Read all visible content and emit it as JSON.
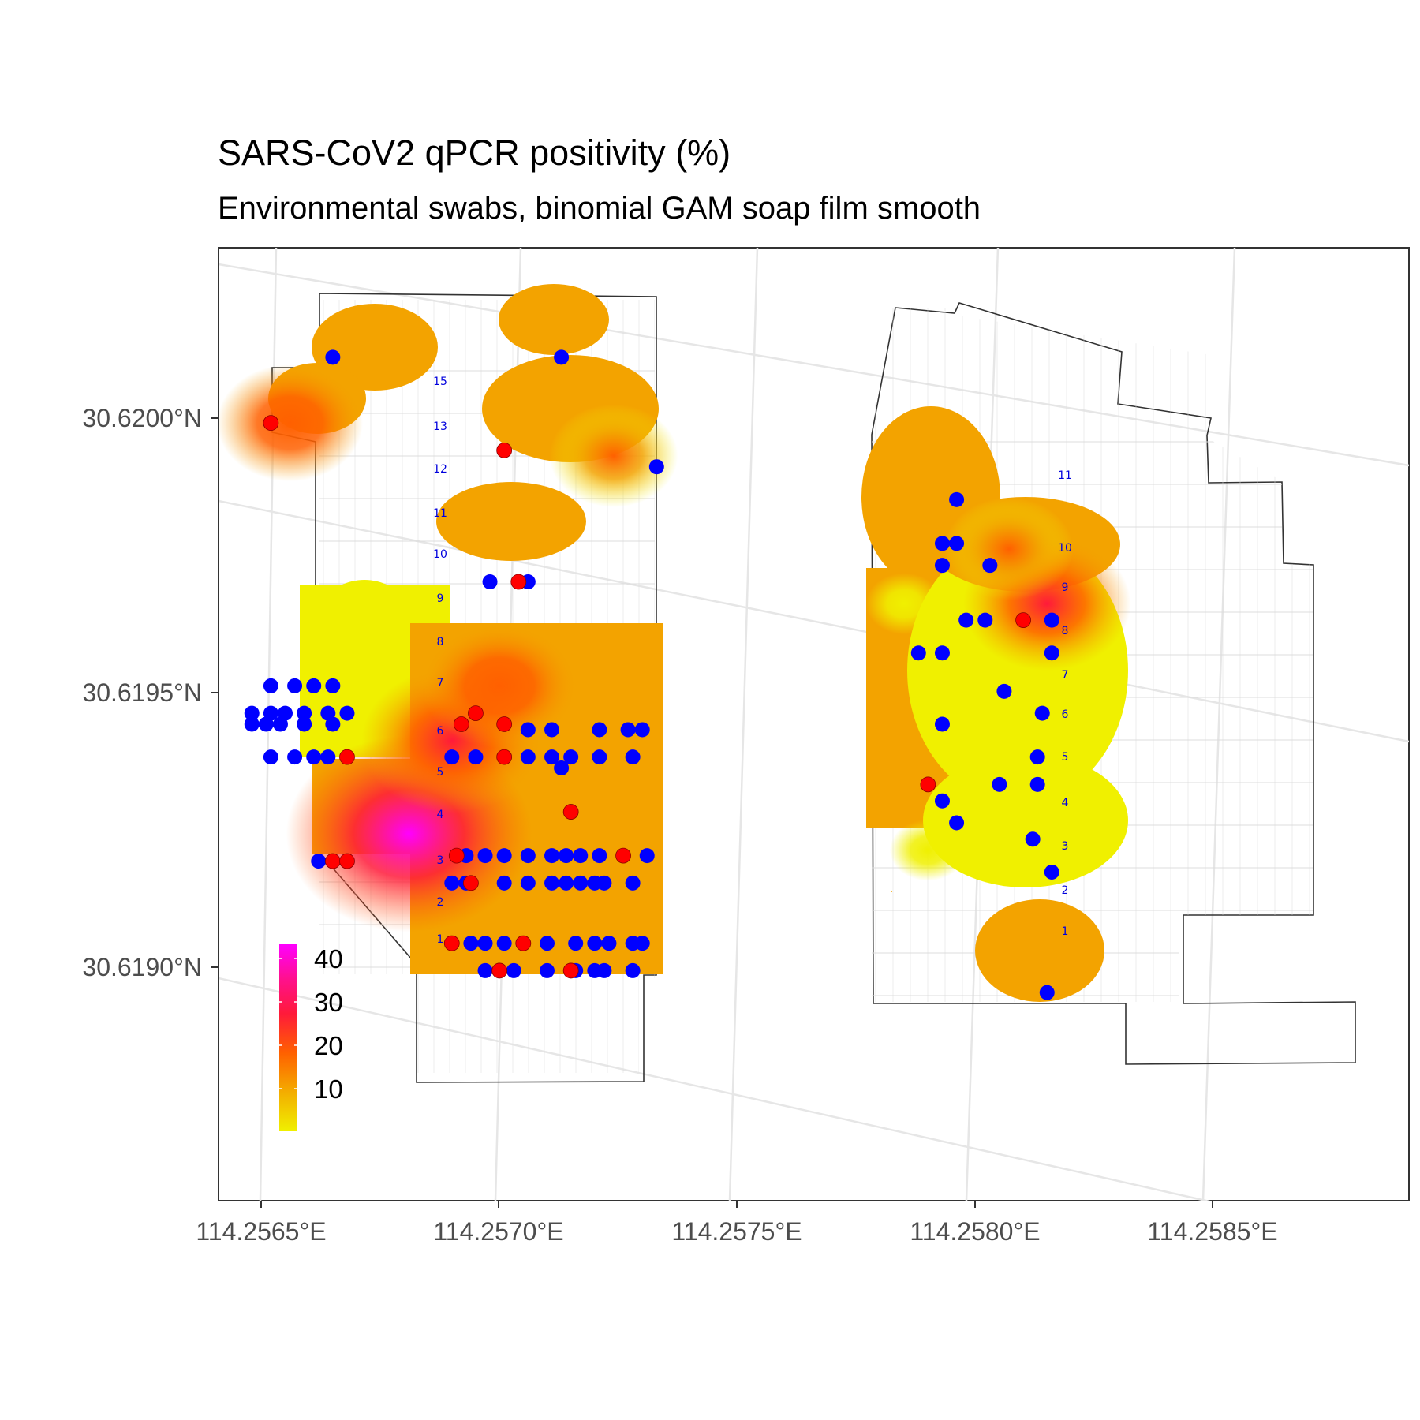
{
  "title": "SARS-CoV2 qPCR positivity (%)",
  "subtitle": "Environmental swabs, binomial GAM soap film smooth",
  "colors": {
    "negative_point": "#0000ff",
    "positive_point": "#ff0000",
    "scale_low": "#f0f000",
    "scale_mid1": "#f3a300",
    "scale_mid2": "#ff6000",
    "scale_mid3": "#ff1a3a",
    "scale_high": "#ff00ff",
    "graticule": "#e6e6e6",
    "boundary": "#333333",
    "row_label": "#0000dd"
  },
  "axes": {
    "x_ticks": [
      "114.2565°E",
      "114.2570°E",
      "114.2575°E",
      "114.2580°E",
      "114.2585°E"
    ],
    "y_ticks": [
      "30.6200°N",
      "30.6195°N",
      "30.6190°N"
    ]
  },
  "legend": {
    "labels": [
      "40",
      "30",
      "20",
      "10"
    ]
  },
  "chart_data": {
    "type": "scatter",
    "title": "SARS-CoV2 qPCR positivity (%)",
    "subtitle": "Environmental swabs, binomial GAM soap film smooth",
    "xlim": [
      114.25641,
      114.25891
    ],
    "ylim": [
      30.61866,
      30.6204
    ],
    "colorbar_range": [
      0,
      43
    ],
    "colorbar_ticks": [
      10,
      20,
      30,
      40
    ],
    "row_labels_left": [
      "15",
      "13",
      "12",
      "11",
      "10",
      "9",
      "8",
      "7",
      "6",
      "5",
      "4",
      "3",
      "2",
      "1"
    ],
    "row_labels_right": [
      "11",
      "10",
      "9",
      "8",
      "7",
      "6",
      "5",
      "4",
      "3",
      "2",
      "1"
    ],
    "hotspots": [
      {
        "lon": 114.25681,
        "lat": 30.61933,
        "value": 43
      },
      {
        "lon": 114.2569,
        "lat": 30.6195,
        "value": 28
      },
      {
        "lon": 114.257,
        "lat": 30.6196,
        "value": 22
      },
      {
        "lon": 114.25656,
        "lat": 30.62008,
        "value": 20
      },
      {
        "lon": 114.25724,
        "lat": 30.62002,
        "value": 16
      },
      {
        "lon": 114.25815,
        "lat": 30.61975,
        "value": 25
      },
      {
        "lon": 114.25807,
        "lat": 30.61985,
        "value": 16
      },
      {
        "lon": 114.2579,
        "lat": 30.6193,
        "value": 4
      },
      {
        "lon": 114.25785,
        "lat": 30.61975,
        "value": 4
      }
    ],
    "negative_points": [
      [
        114.25665,
        30.6202
      ],
      [
        114.25713,
        30.6202
      ],
      [
        114.25733,
        30.62
      ],
      [
        114.25698,
        30.61979
      ],
      [
        114.25706,
        30.61979
      ],
      [
        114.25652,
        30.6196
      ],
      [
        114.25657,
        30.6196
      ],
      [
        114.25661,
        30.6196
      ],
      [
        114.25665,
        30.6196
      ],
      [
        114.25648,
        30.61955
      ],
      [
        114.25652,
        30.61955
      ],
      [
        114.25655,
        30.61955
      ],
      [
        114.25659,
        30.61955
      ],
      [
        114.25664,
        30.61955
      ],
      [
        114.25668,
        30.61955
      ],
      [
        114.25648,
        30.61953
      ],
      [
        114.25651,
        30.61953
      ],
      [
        114.25654,
        30.61953
      ],
      [
        114.25659,
        30.61953
      ],
      [
        114.25665,
        30.61953
      ],
      [
        114.25652,
        30.61947
      ],
      [
        114.25657,
        30.61947
      ],
      [
        114.25661,
        30.61947
      ],
      [
        114.25664,
        30.61947
      ],
      [
        114.25706,
        30.61952
      ],
      [
        114.25711,
        30.61952
      ],
      [
        114.25721,
        30.61952
      ],
      [
        114.25727,
        30.61952
      ],
      [
        114.2573,
        30.61952
      ],
      [
        114.2569,
        30.61947
      ],
      [
        114.25695,
        30.61947
      ],
      [
        114.25706,
        30.61947
      ],
      [
        114.25711,
        30.61947
      ],
      [
        114.25715,
        30.61947
      ],
      [
        114.25721,
        30.61947
      ],
      [
        114.25728,
        30.61947
      ],
      [
        114.25713,
        30.61945
      ],
      [
        114.25662,
        30.61928
      ],
      [
        114.25693,
        30.61929
      ],
      [
        114.25697,
        30.61929
      ],
      [
        114.25701,
        30.61929
      ],
      [
        114.25706,
        30.61929
      ],
      [
        114.25711,
        30.61929
      ],
      [
        114.25714,
        30.61929
      ],
      [
        114.25717,
        30.61929
      ],
      [
        114.25721,
        30.61929
      ],
      [
        114.25731,
        30.61929
      ],
      [
        114.2569,
        30.61924
      ],
      [
        114.25693,
        30.61924
      ],
      [
        114.25701,
        30.61924
      ],
      [
        114.25706,
        30.61924
      ],
      [
        114.25711,
        30.61924
      ],
      [
        114.25714,
        30.61924
      ],
      [
        114.25717,
        30.61924
      ],
      [
        114.2572,
        30.61924
      ],
      [
        114.25722,
        30.61924
      ],
      [
        114.25728,
        30.61924
      ],
      [
        114.25694,
        30.61913
      ],
      [
        114.25697,
        30.61913
      ],
      [
        114.25701,
        30.61913
      ],
      [
        114.25705,
        30.61913
      ],
      [
        114.2571,
        30.61913
      ],
      [
        114.25716,
        30.61913
      ],
      [
        114.2572,
        30.61913
      ],
      [
        114.25723,
        30.61913
      ],
      [
        114.25728,
        30.61913
      ],
      [
        114.2573,
        30.61913
      ],
      [
        114.25697,
        30.61908
      ],
      [
        114.25703,
        30.61908
      ],
      [
        114.2571,
        30.61908
      ],
      [
        114.25716,
        30.61908
      ],
      [
        114.2572,
        30.61908
      ],
      [
        114.25722,
        30.61908
      ],
      [
        114.25728,
        30.61908
      ],
      [
        114.25796,
        30.61994
      ],
      [
        114.25793,
        30.61986
      ],
      [
        114.25796,
        30.61986
      ],
      [
        114.25793,
        30.61982
      ],
      [
        114.25803,
        30.61982
      ],
      [
        114.25798,
        30.61972
      ],
      [
        114.25802,
        30.61972
      ],
      [
        114.25816,
        30.61972
      ],
      [
        114.25816,
        30.61966
      ],
      [
        114.25788,
        30.61966
      ],
      [
        114.25793,
        30.61966
      ],
      [
        114.25806,
        30.61959
      ],
      [
        114.25814,
        30.61955
      ],
      [
        114.25793,
        30.61953
      ],
      [
        114.25813,
        30.61947
      ],
      [
        114.25793,
        30.61939
      ],
      [
        114.25805,
        30.61942
      ],
      [
        114.25813,
        30.61942
      ],
      [
        114.25796,
        30.61935
      ],
      [
        114.25812,
        30.61932
      ],
      [
        114.25816,
        30.61926
      ],
      [
        114.25815,
        30.61904
      ]
    ],
    "positive_points": [
      [
        114.25652,
        30.62008
      ],
      [
        114.25701,
        30.62003
      ],
      [
        114.25704,
        30.61979
      ],
      [
        114.25695,
        30.61955
      ],
      [
        114.25692,
        30.61953
      ],
      [
        114.25701,
        30.61953
      ],
      [
        114.25668,
        30.61947
      ],
      [
        114.25701,
        30.61947
      ],
      [
        114.25715,
        30.61937
      ],
      [
        114.25665,
        30.61928
      ],
      [
        114.25668,
        30.61928
      ],
      [
        114.25691,
        30.61929
      ],
      [
        114.25726,
        30.61929
      ],
      [
        114.25694,
        30.61924
      ],
      [
        114.2569,
        30.61913
      ],
      [
        114.25705,
        30.61913
      ],
      [
        114.257,
        30.61908
      ],
      [
        114.25715,
        30.61908
      ],
      [
        114.2581,
        30.61972
      ],
      [
        114.2579,
        30.61942
      ]
    ]
  }
}
